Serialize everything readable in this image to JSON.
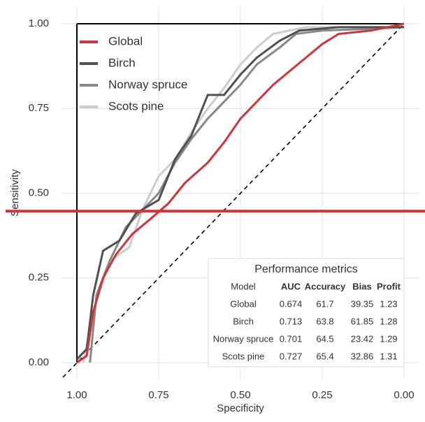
{
  "chart_data": {
    "type": "line",
    "x_label": "Specificity",
    "y_label": "Sensitivity",
    "xlim": [
      1,
      0
    ],
    "ylim": [
      0,
      1
    ],
    "xticks": [
      {
        "value": 1,
        "label": "1.00"
      },
      {
        "value": 0.75,
        "label": "0.75"
      },
      {
        "value": 0.5,
        "label": "0.50"
      },
      {
        "value": 0.25,
        "label": "0.25"
      },
      {
        "value": 0,
        "label": "0.00"
      }
    ],
    "yticks": [
      {
        "value": 0,
        "label": "0.00"
      },
      {
        "value": 0.25,
        "label": "0.25"
      },
      {
        "value": 0.5,
        "label": "0.50"
      },
      {
        "value": 0.75,
        "label": "0.75"
      },
      {
        "value": 1,
        "label": "1.00"
      }
    ],
    "grid": true,
    "legend": "top-left",
    "hline": {
      "value": 0.447,
      "color": "#d0343a"
    },
    "series": [
      {
        "name": "Global",
        "color": "#d0343a",
        "x": [
          1,
          0.97,
          0.95,
          0.92,
          0.88,
          0.83,
          0.78,
          0.72,
          0.67,
          0.6,
          0.55,
          0.5,
          0.45,
          0.4,
          0.35,
          0.3,
          0.25,
          0.2,
          0.1,
          0
        ],
        "values": [
          0,
          0.02,
          0.15,
          0.25,
          0.32,
          0.38,
          0.42,
          0.47,
          0.53,
          0.59,
          0.65,
          0.72,
          0.77,
          0.82,
          0.86,
          0.9,
          0.94,
          0.97,
          0.98,
          1
        ]
      },
      {
        "name": "Birch",
        "color": "#505050",
        "x": [
          1,
          0.97,
          0.95,
          0.92,
          0.87,
          0.82,
          0.75,
          0.7,
          0.65,
          0.6,
          0.55,
          0.5,
          0.45,
          0.38,
          0.32,
          0.2,
          0.1,
          0
        ],
        "values": [
          0.01,
          0.04,
          0.2,
          0.33,
          0.36,
          0.44,
          0.48,
          0.6,
          0.67,
          0.79,
          0.79,
          0.85,
          0.9,
          0.95,
          0.98,
          0.99,
          0.99,
          0.99
        ]
      },
      {
        "name": "Norway spruce",
        "color": "#888888",
        "x": [
          0.96,
          0.94,
          0.9,
          0.85,
          0.8,
          0.75,
          0.7,
          0.65,
          0.6,
          0.55,
          0.5,
          0.45,
          0.38,
          0.33,
          0.25,
          0.1,
          0
        ],
        "values": [
          0,
          0.2,
          0.3,
          0.4,
          0.45,
          0.5,
          0.59,
          0.66,
          0.72,
          0.77,
          0.82,
          0.88,
          0.93,
          0.97,
          0.98,
          0.985,
          0.99
        ]
      },
      {
        "name": "Scots pine",
        "color": "#cccccc",
        "x": [
          0.98,
          0.95,
          0.9,
          0.84,
          0.8,
          0.75,
          0.7,
          0.65,
          0.6,
          0.55,
          0.5,
          0.45,
          0.4,
          0.3,
          0.1,
          0
        ],
        "values": [
          0,
          0.15,
          0.3,
          0.34,
          0.45,
          0.55,
          0.6,
          0.68,
          0.75,
          0.81,
          0.88,
          0.93,
          0.97,
          0.99,
          0.99,
          0.99
        ]
      }
    ],
    "inset_table": {
      "title": "Performance metrics",
      "columns": [
        "Model",
        "AUC",
        "Accuracy",
        "Bias",
        "Profit"
      ],
      "rows": [
        [
          "Global",
          0.674,
          61.7,
          39.35,
          1.23
        ],
        [
          "Birch",
          0.713,
          63.8,
          61.85,
          1.28
        ],
        [
          "Norway spruce",
          0.701,
          64.5,
          23.42,
          1.29
        ],
        [
          "Scots pine",
          0.727,
          65.4,
          32.86,
          1.31
        ]
      ]
    }
  }
}
